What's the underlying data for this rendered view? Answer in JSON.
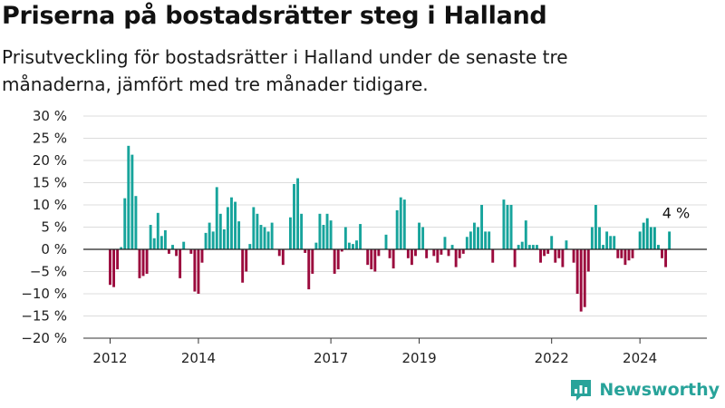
{
  "title": "Priserna på bostadsrätter steg i Halland",
  "subtitle": "Prisutveckling för bostadsrätter i Halland under de senaste tre månaderna, jämfört med tre månader tidigare.",
  "brand": {
    "name": "Newsworthy",
    "icon": "newsworthy-logo-icon",
    "color": "#28a39a"
  },
  "colors": {
    "positive": "#17a49c",
    "negative": "#9b0a3d",
    "last_year": "#0e9f95"
  },
  "chart_data": {
    "type": "bar",
    "title": "",
    "xlabel": "",
    "ylabel": "",
    "ylim": [
      -20,
      30
    ],
    "y_ticks": [
      30,
      25,
      20,
      15,
      10,
      5,
      0,
      -5,
      -10,
      -15,
      -20
    ],
    "y_tick_labels": [
      "30 %",
      "25 %",
      "20 %",
      "15 %",
      "10 %",
      "5 %",
      "0 %",
      "−5 %",
      "−10 %",
      "−15 %",
      "−20 %"
    ],
    "x_ticks": [
      {
        "label": "2012",
        "index": 0
      },
      {
        "label": "2014",
        "index": 24
      },
      {
        "label": "2017",
        "index": 60
      },
      {
        "label": "2019",
        "index": 84
      },
      {
        "label": "2022",
        "index": 120
      },
      {
        "label": "2024",
        "index": 144
      }
    ],
    "grid": true,
    "annotation": {
      "text": "4 %",
      "index": 154,
      "value": 4
    },
    "values": [
      -8,
      -8.5,
      -4.5,
      0.5,
      11.5,
      23.3,
      21.3,
      12,
      -6.5,
      -6,
      -5.5,
      5.5,
      2.5,
      8.2,
      3,
      4.3,
      -1,
      1,
      -1.5,
      -6.5,
      1.7,
      0,
      -1,
      -9.5,
      -10,
      -3,
      3.7,
      6,
      4,
      14,
      8,
      4.5,
      9.5,
      11.7,
      10.7,
      6.3,
      -7.5,
      -5,
      1.2,
      9.5,
      8,
      5.5,
      5,
      4,
      6,
      0,
      -1.5,
      -3.5,
      0,
      7.2,
      14.7,
      16,
      8,
      -0.8,
      -9,
      -5.5,
      1.5,
      8,
      5.5,
      8,
      6.5,
      -5.5,
      -4.5,
      -0.5,
      5,
      1.5,
      1.2,
      2,
      5.7,
      0,
      -3.5,
      -4.5,
      -5,
      -1.5,
      0,
      3.3,
      -2,
      -4.3,
      8.8,
      11.7,
      11.2,
      -2,
      -3.5,
      -1.5,
      6,
      5,
      -2,
      0,
      -1.5,
      -3,
      -1.2,
      2.8,
      -1.5,
      1,
      -4,
      -2,
      -1,
      2.8,
      4,
      6,
      5,
      10,
      4,
      4,
      -3,
      0,
      0,
      11.2,
      10,
      10,
      -4,
      1,
      1.7,
      6.5,
      1,
      1,
      1,
      -3,
      -1.5,
      -1,
      3,
      -3,
      -2,
      -4,
      2,
      0,
      -3,
      -10,
      -14,
      -13,
      -5,
      5,
      10,
      5,
      1,
      4,
      3,
      3,
      -2,
      -2,
      -3.5,
      -2.5,
      -2,
      0,
      4,
      6,
      7,
      5,
      5,
      1,
      -2,
      -4,
      4
    ]
  }
}
